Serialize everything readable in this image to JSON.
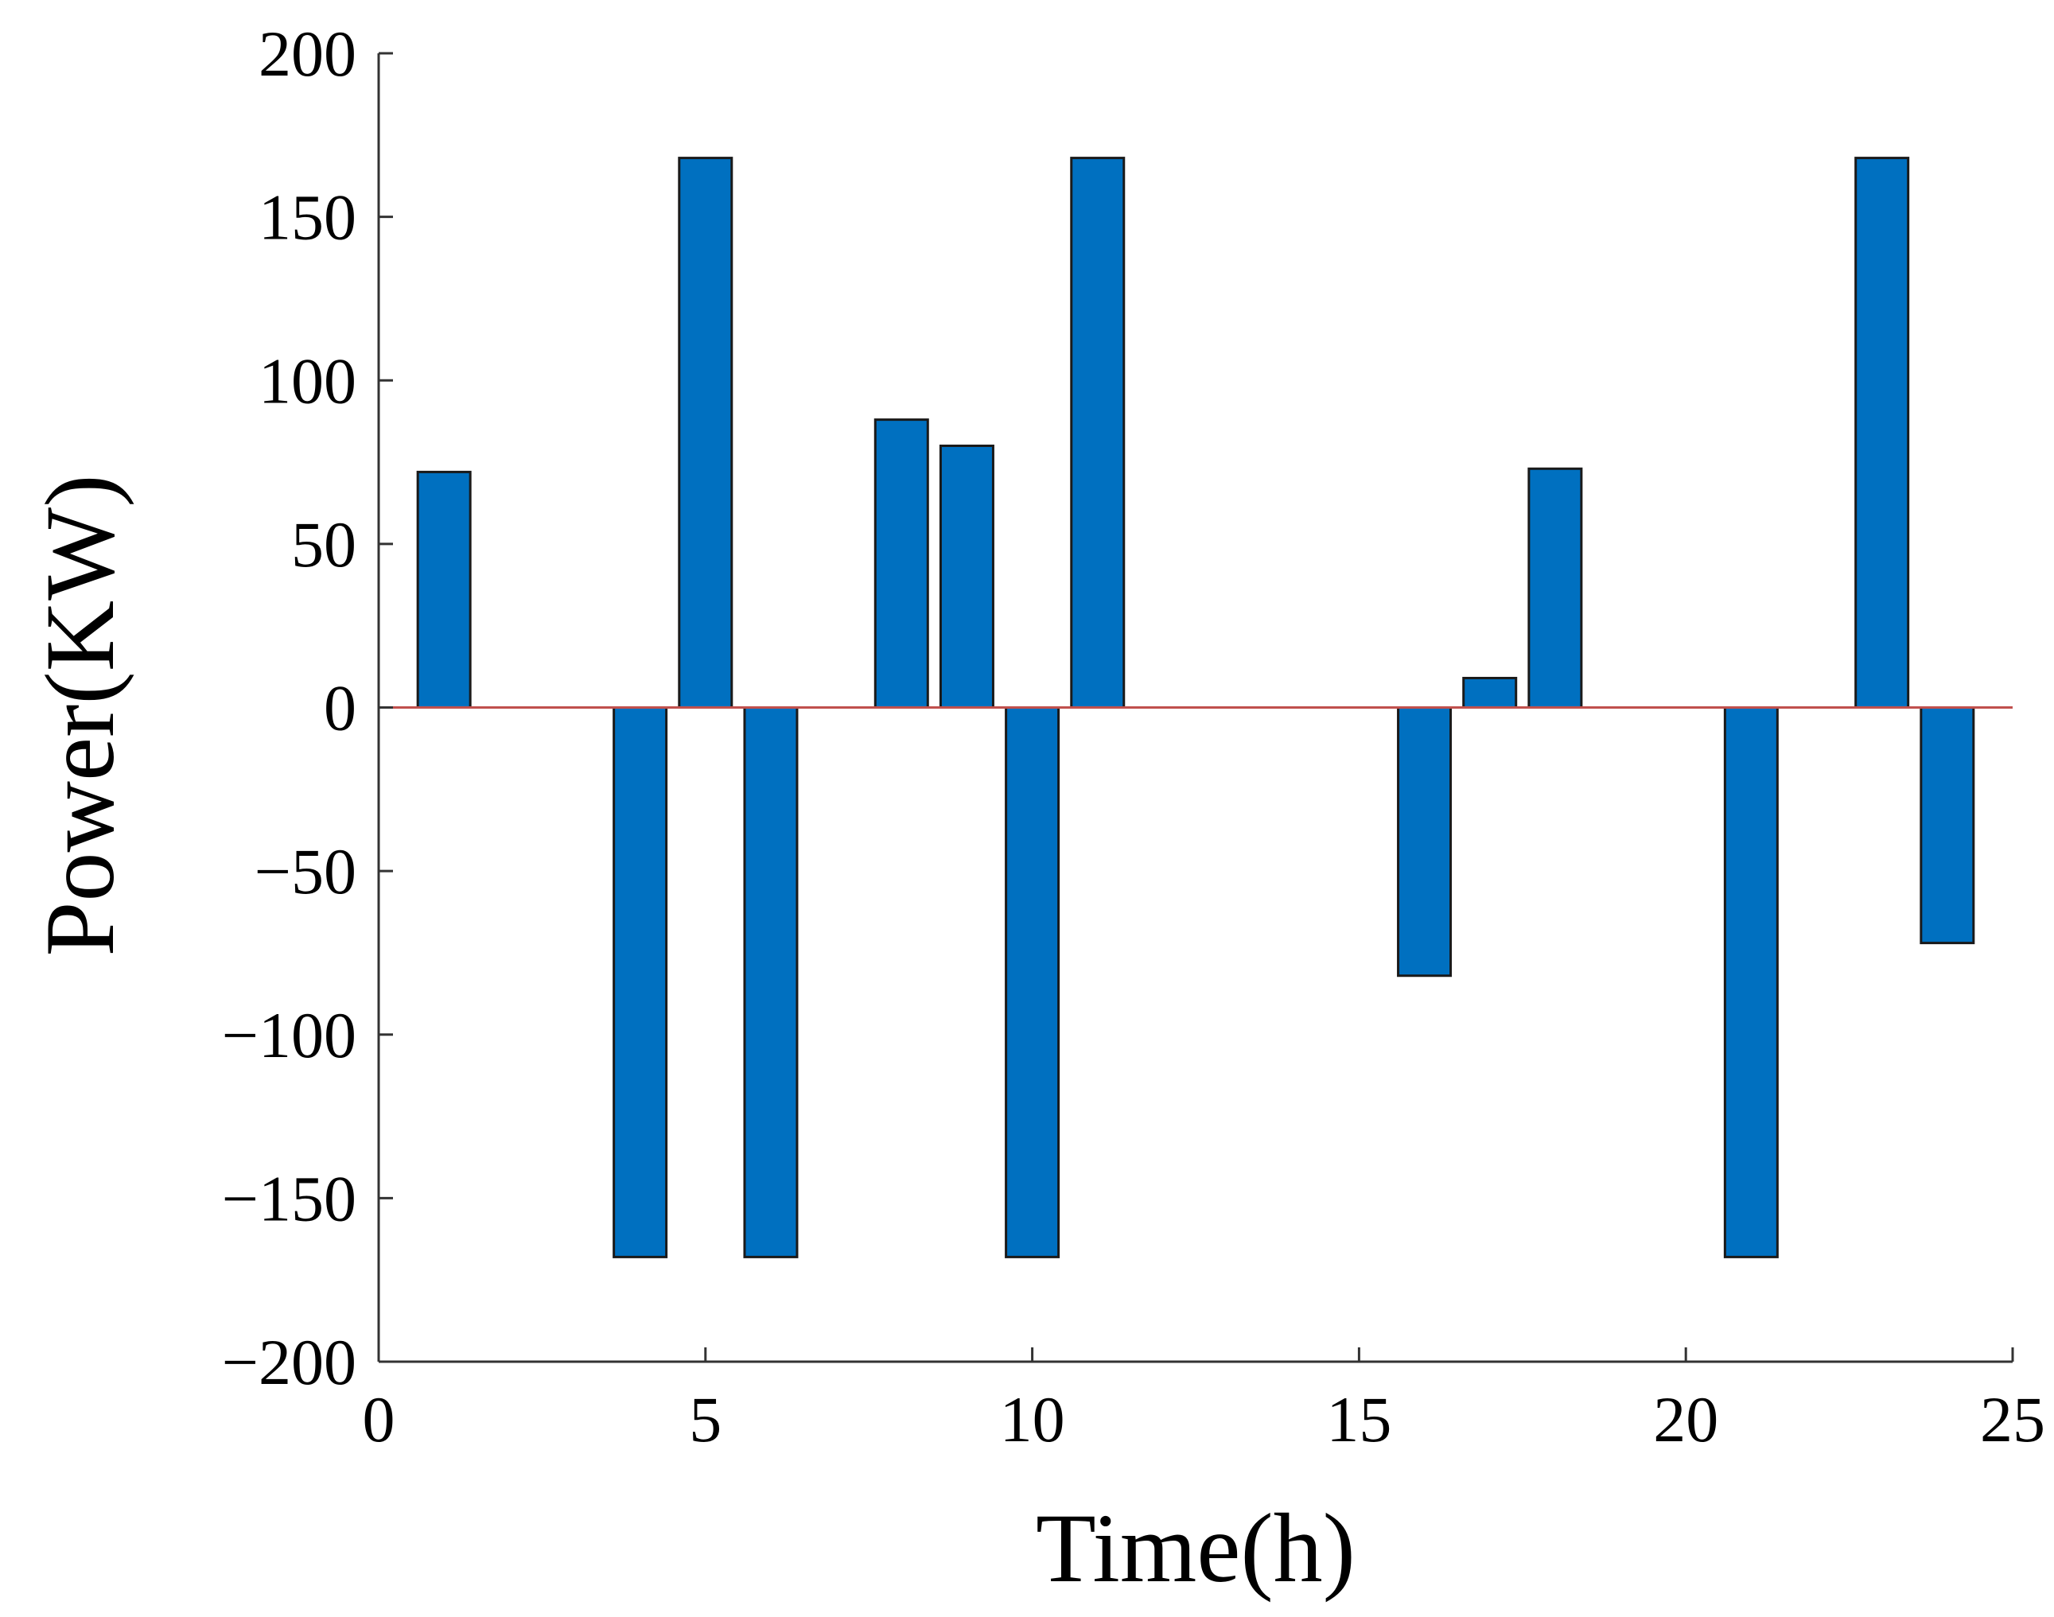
{
  "chart_data": {
    "type": "bar",
    "title": "",
    "xlabel": "Time(h)",
    "ylabel": "Power(KW)",
    "xlim": [
      0,
      25
    ],
    "ylim": [
      -200,
      200
    ],
    "xticks": [
      0,
      5,
      10,
      15,
      20,
      25
    ],
    "yticks": [
      200,
      150,
      100,
      50,
      0,
      -50,
      -100,
      -150,
      -200
    ],
    "ytick_labels": [
      "200",
      "150",
      "100",
      "50",
      "0",
      "−50",
      "−100",
      "−150",
      "−200"
    ],
    "grid": false,
    "legend": "none",
    "bar_color": "#0070c0",
    "zero_line_color": "#c0504d",
    "x": [
      1,
      2,
      3,
      4,
      5,
      6,
      7,
      8,
      9,
      10,
      11,
      12,
      13,
      14,
      15,
      16,
      17,
      18,
      19,
      20,
      21,
      22,
      23,
      24
    ],
    "values": [
      72,
      0,
      0,
      -168,
      168,
      -168,
      0,
      88,
      80,
      -168,
      168,
      0,
      0,
      0,
      0,
      -82,
      9,
      73,
      0,
      0,
      -168,
      0,
      168,
      -72
    ]
  }
}
